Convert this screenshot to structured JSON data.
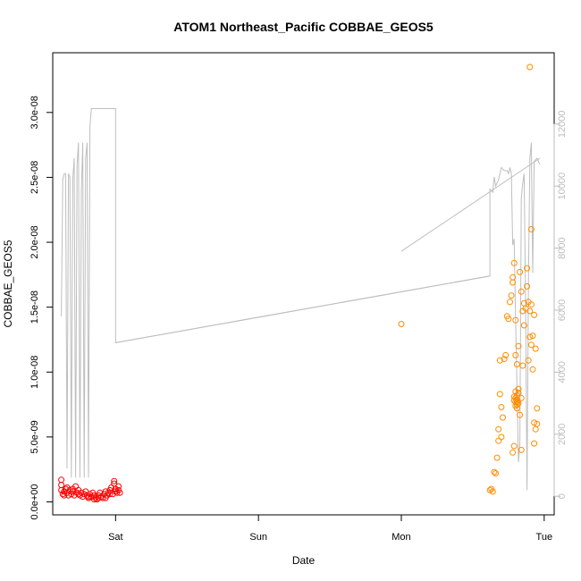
{
  "chart_data": {
    "type": "scatter",
    "title": "ATOM1 Northeast_Pacific COBBAE_GEOS5",
    "xlabel": "Date",
    "ylabel": "COBBAE_GEOS5",
    "x_ticks": [
      "Sat",
      "Sun",
      "Mon",
      "Tue"
    ],
    "x_tick_days": [
      1,
      2,
      3,
      4
    ],
    "xlim_days": [
      0.56,
      4.07
    ],
    "ylim": [
      -1e-09,
      3.46e-08
    ],
    "y_ticks": [
      0,
      5e-09,
      1e-08,
      1.5e-08,
      2e-08,
      2.5e-08,
      3e-08
    ],
    "y_tick_labels": [
      "0.0e+00",
      "5.0e-09",
      "1.0e-08",
      "1.5e-08",
      "2.0e-08",
      "2.5e-08",
      "3.0e-08"
    ],
    "y2_ticks": [
      0,
      2000,
      4000,
      6000,
      8000,
      10000,
      12000
    ],
    "y2_tick_labels": [
      "0",
      "2000",
      "4000",
      "6000",
      "8000",
      "10000",
      "12000"
    ],
    "y2lim": [
      -600,
      14300
    ],
    "colors": {
      "series1": "#ff0000",
      "series2": "#ff8c00",
      "line": "#bebebe",
      "axis": "#000000",
      "axis_right": "#bdbdbd"
    },
    "series": [
      {
        "points": [
          [
            0.62,
            1.7e-09
          ],
          [
            0.62,
            1.3e-09
          ],
          [
            0.62,
            9e-10
          ],
          [
            0.63,
            6e-10
          ],
          [
            0.64,
            8e-10
          ],
          [
            0.65,
            1e-09
          ],
          [
            0.66,
            7e-10
          ],
          [
            0.67,
            5e-10
          ],
          [
            0.68,
            9e-10
          ],
          [
            0.69,
            6e-10
          ],
          [
            0.7,
            8e-10
          ],
          [
            0.71,
            5e-10
          ],
          [
            0.72,
            1.2e-09
          ],
          [
            0.73,
            7e-10
          ],
          [
            0.74,
            9e-10
          ],
          [
            0.75,
            5e-10
          ],
          [
            0.76,
            7e-10
          ],
          [
            0.77,
            4e-10
          ],
          [
            0.78,
            6e-10
          ],
          [
            0.79,
            8e-10
          ],
          [
            0.8,
            5e-10
          ],
          [
            0.81,
            3e-10
          ],
          [
            0.82,
            6e-10
          ],
          [
            0.83,
            4e-10
          ],
          [
            0.84,
            7e-10
          ],
          [
            0.85,
            5e-10
          ],
          [
            0.86,
            3e-10
          ],
          [
            0.87,
            2e-10
          ],
          [
            0.88,
            5e-10
          ],
          [
            0.89,
            7e-10
          ],
          [
            0.9,
            4e-10
          ],
          [
            0.91,
            3e-10
          ],
          [
            0.92,
            6e-10
          ],
          [
            0.93,
            8e-10
          ],
          [
            0.94,
            5e-10
          ],
          [
            0.95,
            7e-10
          ],
          [
            0.96,
            9e-10
          ],
          [
            0.97,
            1.1e-09
          ],
          [
            0.98,
            6e-10
          ],
          [
            0.99,
            1.4e-09
          ],
          [
            0.99,
            1.6e-09
          ],
          [
            1.0,
            8e-10
          ],
          [
            1.0,
            1e-09
          ],
          [
            1.01,
            7e-10
          ],
          [
            1.02,
            1.2e-09
          ],
          [
            1.02,
            9e-10
          ],
          [
            1.03,
            7e-10
          ],
          [
            0.81,
            4e-10
          ],
          [
            0.85,
            2e-10
          ],
          [
            0.88,
            3e-10
          ],
          [
            0.93,
            3e-10
          ],
          [
            0.96,
            6e-10
          ],
          [
            0.7,
            1e-09
          ],
          [
            0.74,
            6e-10
          ],
          [
            0.64,
            5e-10
          ],
          [
            0.66,
            1.1e-09
          ]
        ]
      },
      {
        "points": [
          [
            3.0,
            1.37e-08
          ],
          [
            3.62,
            9e-10
          ],
          [
            3.63,
            1e-09
          ],
          [
            3.64,
            8e-10
          ],
          [
            3.65,
            2.3e-09
          ],
          [
            3.66,
            2.2e-09
          ],
          [
            3.67,
            3.4e-09
          ],
          [
            3.68,
            4.7e-09
          ],
          [
            3.68,
            5.6e-09
          ],
          [
            3.69,
            1.09e-08
          ],
          [
            3.69,
            8.3e-09
          ],
          [
            3.7,
            5e-09
          ],
          [
            3.7,
            7.3e-09
          ],
          [
            3.71,
            6.5e-09
          ],
          [
            3.72,
            1.1e-08
          ],
          [
            3.73,
            1.13e-08
          ],
          [
            3.74,
            1.43e-08
          ],
          [
            3.75,
            1.41e-08
          ],
          [
            3.76,
            1.54e-08
          ],
          [
            3.77,
            1.59e-08
          ],
          [
            3.78,
            1.69e-08
          ],
          [
            3.78,
            1.73e-08
          ],
          [
            3.79,
            1.84e-08
          ],
          [
            3.8,
            1.13e-08
          ],
          [
            3.8,
            1.4e-08
          ],
          [
            3.81,
            1.06e-08
          ],
          [
            3.82,
            1.2e-08
          ],
          [
            3.83,
            1.77e-08
          ],
          [
            3.84,
            1.62e-08
          ],
          [
            3.85,
            1.47e-08
          ],
          [
            3.86,
            1.36e-08
          ],
          [
            3.87,
            1.49e-08
          ],
          [
            3.88,
            1.8e-08
          ],
          [
            3.89,
            1.54e-08
          ],
          [
            3.9,
            1.27e-08
          ],
          [
            3.91,
            1.21e-08
          ],
          [
            3.92,
            1.02e-08
          ],
          [
            3.93,
            6.1e-09
          ],
          [
            3.93,
            4.5e-09
          ],
          [
            3.94,
            5.6e-09
          ],
          [
            3.95,
            7.2e-09
          ],
          [
            3.95,
            6e-09
          ],
          [
            3.9,
            3.35e-08
          ],
          [
            3.91,
            2.1e-08
          ],
          [
            3.85,
            1.05e-08
          ],
          [
            3.84,
            8e-09
          ],
          [
            3.84,
            4e-09
          ],
          [
            3.83,
            6.7e-09
          ],
          [
            3.79,
            4.3e-09
          ],
          [
            3.78,
            3.8e-09
          ],
          [
            3.81,
            7.7e-09
          ],
          [
            3.82,
            8.7e-09
          ],
          [
            3.8,
            8e-09
          ],
          [
            3.79,
            7.8e-09
          ],
          [
            3.81,
            7.5e-09
          ],
          [
            3.8,
            7.7e-09
          ],
          [
            3.81,
            8.2e-09
          ],
          [
            3.8,
            8.5e-09
          ],
          [
            3.82,
            7.6e-09
          ],
          [
            3.81,
            7.9e-09
          ],
          [
            3.79,
            8.1e-09
          ],
          [
            3.8,
            7.4e-09
          ],
          [
            3.82,
            8.4e-09
          ],
          [
            3.81,
            7.2e-09
          ],
          [
            3.92,
            1.28e-08
          ],
          [
            3.93,
            1.44e-08
          ],
          [
            3.91,
            1.52e-08
          ],
          [
            3.9,
            1.47e-08
          ],
          [
            3.94,
            1.18e-08
          ],
          [
            3.89,
            1.09e-08
          ],
          [
            3.86,
            1.53e-08
          ],
          [
            3.88,
            1.66e-08
          ]
        ]
      }
    ],
    "line": {
      "axis": "right",
      "points": [
        [
          0.62,
          5800
        ],
        [
          0.63,
          10200
        ],
        [
          0.64,
          10400
        ],
        [
          0.65,
          10400
        ],
        [
          0.66,
          900
        ],
        [
          0.67,
          10400
        ],
        [
          0.68,
          10300
        ],
        [
          0.69,
          600
        ],
        [
          0.7,
          10200
        ],
        [
          0.71,
          10900
        ],
        [
          0.72,
          600
        ],
        [
          0.73,
          10700
        ],
        [
          0.74,
          11400
        ],
        [
          0.75,
          600
        ],
        [
          0.76,
          9800
        ],
        [
          0.77,
          11400
        ],
        [
          0.78,
          600
        ],
        [
          0.79,
          10900
        ],
        [
          0.8,
          11400
        ],
        [
          0.81,
          600
        ],
        [
          0.82,
          11900
        ],
        [
          0.83,
          12500
        ],
        [
          0.84,
          12500
        ],
        [
          0.85,
          12500
        ],
        [
          0.86,
          12500
        ],
        [
          0.87,
          12500
        ],
        [
          0.88,
          12500
        ],
        [
          0.89,
          12500
        ],
        [
          0.9,
          12500
        ],
        [
          0.91,
          12500
        ],
        [
          0.92,
          12500
        ],
        [
          0.93,
          12500
        ],
        [
          0.94,
          12500
        ],
        [
          0.95,
          12500
        ],
        [
          0.96,
          12500
        ],
        [
          0.97,
          12500
        ],
        [
          0.98,
          12500
        ],
        [
          0.99,
          12500
        ],
        [
          1.0,
          12500
        ],
        [
          1.0,
          4950
        ],
        [
          3.62,
          7100
        ],
        [
          3.62,
          9900
        ],
        [
          3.64,
          9800
        ],
        [
          3.65,
          10300
        ],
        [
          3.66,
          10000
        ],
        [
          3.68,
          10200
        ],
        [
          3.7,
          10600
        ],
        [
          3.72,
          10500
        ],
        [
          3.74,
          10500
        ],
        [
          3.75,
          10400
        ],
        [
          3.76,
          10600
        ],
        [
          3.77,
          10400
        ],
        [
          3.78,
          8100
        ],
        [
          3.79,
          8300
        ],
        [
          3.8,
          5800
        ],
        [
          3.82,
          1100
        ],
        [
          3.83,
          1700
        ],
        [
          3.84,
          9600
        ],
        [
          3.85,
          10100
        ],
        [
          3.86,
          10400
        ],
        [
          3.87,
          6200
        ],
        [
          3.88,
          200
        ],
        [
          3.89,
          6900
        ],
        [
          3.9,
          10900
        ],
        [
          3.91,
          11400
        ],
        [
          3.92,
          7200
        ],
        [
          3.93,
          10800
        ],
        [
          3.95,
          10900
        ],
        [
          3.97,
          10700
        ]
      ]
    },
    "line_segment2": {
      "points": [
        [
          3.0,
          7900
        ],
        [
          3.97,
          10900
        ]
      ]
    },
    "line_segment1": {
      "points": [
        [
          1.0,
          4950
        ],
        [
          3.62,
          7100
        ]
      ]
    }
  }
}
